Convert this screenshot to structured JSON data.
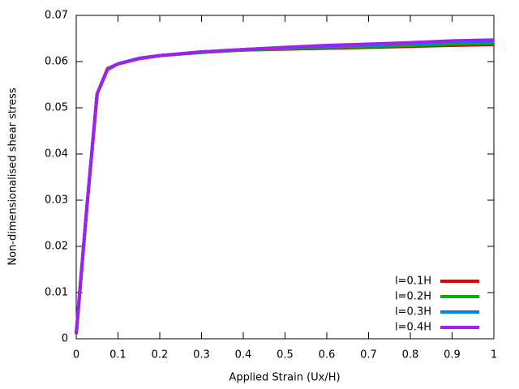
{
  "chart_data": {
    "type": "line",
    "xlabel": "Applied Strain (Ux/H)",
    "ylabel": "Non-dimensionalised shear stress",
    "x": [
      0,
      0.025,
      0.05,
      0.075,
      0.1,
      0.15,
      0.2,
      0.3,
      0.4,
      0.5,
      0.6,
      0.7,
      0.8,
      0.9,
      1.0
    ],
    "series": [
      {
        "name": "l=0.1H",
        "color": "#e00000",
        "values": [
          0.001,
          0.028,
          0.053,
          0.0585,
          0.0595,
          0.0607,
          0.0613,
          0.062,
          0.0625,
          0.0627,
          0.0629,
          0.0631,
          0.0633,
          0.0635,
          0.0637
        ]
      },
      {
        "name": "l=0.2H",
        "color": "#00b000",
        "values": [
          0.001,
          0.028,
          0.053,
          0.0584,
          0.0595,
          0.0607,
          0.0613,
          0.062,
          0.0625,
          0.0628,
          0.0631,
          0.0633,
          0.0635,
          0.0638,
          0.064
        ]
      },
      {
        "name": "l=0.3H",
        "color": "#0080f0",
        "values": [
          0.001,
          0.028,
          0.053,
          0.0584,
          0.0595,
          0.0607,
          0.0613,
          0.0621,
          0.0626,
          0.063,
          0.0633,
          0.0636,
          0.0639,
          0.0642,
          0.0644
        ]
      },
      {
        "name": "l=0.4H",
        "color": "#a020f0",
        "values": [
          0.001,
          0.028,
          0.053,
          0.0583,
          0.0595,
          0.0606,
          0.0613,
          0.0621,
          0.0626,
          0.0631,
          0.0635,
          0.0638,
          0.0641,
          0.0645,
          0.0647
        ]
      }
    ],
    "xlim": [
      0,
      1
    ],
    "ylim": [
      0,
      0.07
    ],
    "xticks": [
      0,
      0.1,
      0.2,
      0.3,
      0.4,
      0.5,
      0.6,
      0.7,
      0.8,
      0.9,
      1
    ],
    "yticks": [
      0,
      0.01,
      0.02,
      0.03,
      0.04,
      0.05,
      0.06,
      0.07
    ],
    "legend": "lower right"
  }
}
